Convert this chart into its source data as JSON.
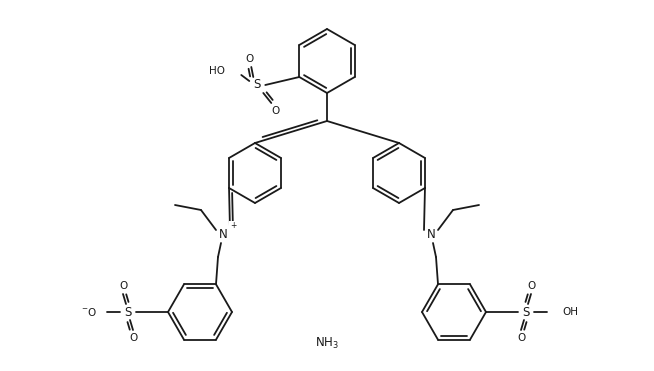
{
  "bg_color": "#ffffff",
  "line_color": "#1a1a1a",
  "line_width": 1.3,
  "font_size": 7.5,
  "fig_width": 6.54,
  "fig_height": 3.71,
  "dpi": 100,
  "xlim": [
    0,
    654
  ],
  "ylim": [
    0,
    371
  ]
}
